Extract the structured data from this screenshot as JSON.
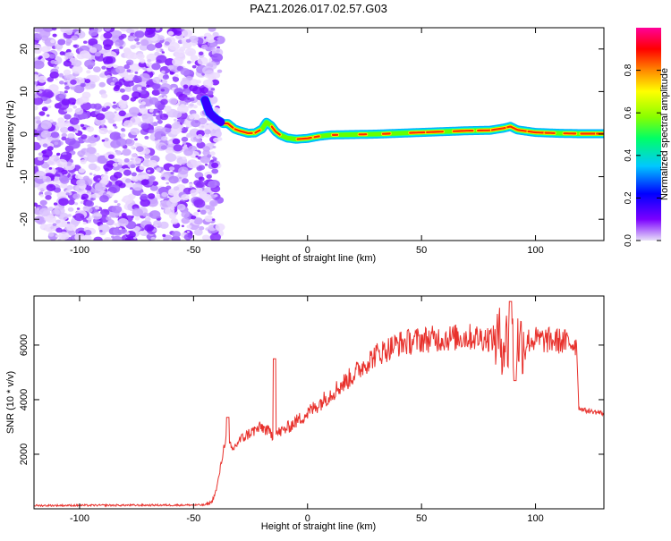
{
  "title": "PAZ1.2026.017.02.57.G03",
  "chart_data": [
    {
      "type": "heatmap",
      "name": "spectrogram",
      "xlabel": "Height of straight line (km)",
      "ylabel": "Frequency (Hz)",
      "xlim": [
        -120,
        130
      ],
      "ylim": [
        -25,
        25
      ],
      "xticks": [
        -100,
        -50,
        0,
        50,
        100
      ],
      "yticks": [
        -20,
        -10,
        0,
        10,
        20
      ],
      "noise_region_x": [
        -120,
        -43
      ],
      "ridge": {
        "x": [
          -45,
          -43,
          -40,
          -37,
          -35,
          -32,
          -30,
          -26,
          -23,
          -20,
          -18,
          -16,
          -14,
          -12,
          -9,
          -5,
          0,
          5,
          10,
          20,
          30,
          40,
          50,
          60,
          70,
          80,
          86,
          89,
          92,
          100,
          110,
          120,
          130
        ],
        "y": [
          8,
          5,
          3.5,
          2.5,
          2.5,
          1.2,
          0.8,
          0.2,
          0.3,
          1.2,
          2.8,
          2.0,
          0.6,
          -0.2,
          -0.9,
          -1.2,
          -1.0,
          -0.5,
          -0.2,
          -0.1,
          0.0,
          0.2,
          0.4,
          0.6,
          0.8,
          0.9,
          1.4,
          1.8,
          1.0,
          0.4,
          0.2,
          0.1,
          0.1
        ]
      }
    },
    {
      "type": "line",
      "name": "snr",
      "xlabel": "Height of straight line (km)",
      "ylabel": "SNR (10 * v/v)",
      "xlim": [
        -120,
        130
      ],
      "ylim": [
        0,
        7800
      ],
      "xticks": [
        -100,
        -50,
        0,
        50,
        100
      ],
      "yticks": [
        2000,
        4000,
        6000
      ],
      "color": "#e8312c",
      "envelope": {
        "x": [
          -120,
          -45,
          -42,
          -40,
          -38,
          -36,
          -33,
          -30,
          -25,
          -20,
          -15,
          -10,
          -5,
          0,
          5,
          10,
          15,
          20,
          25,
          30,
          35,
          40,
          50,
          60,
          70,
          80,
          90,
          100,
          110,
          118,
          119,
          122,
          130
        ],
        "y": [
          120,
          140,
          250,
          700,
          1600,
          2600,
          2150,
          2500,
          2800,
          3000,
          2700,
          2900,
          3200,
          3500,
          3850,
          4200,
          4550,
          4900,
          5300,
          5650,
          5850,
          6050,
          6200,
          6250,
          6300,
          6250,
          6100,
          6200,
          6150,
          6050,
          3700,
          3600,
          3500
        ]
      },
      "spikes": [
        {
          "x": -35,
          "y": 3350
        },
        {
          "x": -14.5,
          "y": 5500
        },
        {
          "x": 89,
          "y": 7600
        },
        {
          "x": 91,
          "y": 4700
        }
      ]
    }
  ],
  "colorbar": {
    "label": "Normalized spectral amplitude",
    "ticks": [
      "0.0",
      "0.2",
      "0.4",
      "0.6",
      "0.8"
    ],
    "tick_values": [
      0,
      0.2,
      0.4,
      0.6,
      0.8
    ],
    "range": [
      0,
      1
    ],
    "colors": [
      "#e8e0f8",
      "#7b00ff",
      "#0000ff",
      "#00c8ff",
      "#00ff66",
      "#88ff00",
      "#ffff00",
      "#ff8800",
      "#ff0000",
      "#ff0099"
    ]
  }
}
